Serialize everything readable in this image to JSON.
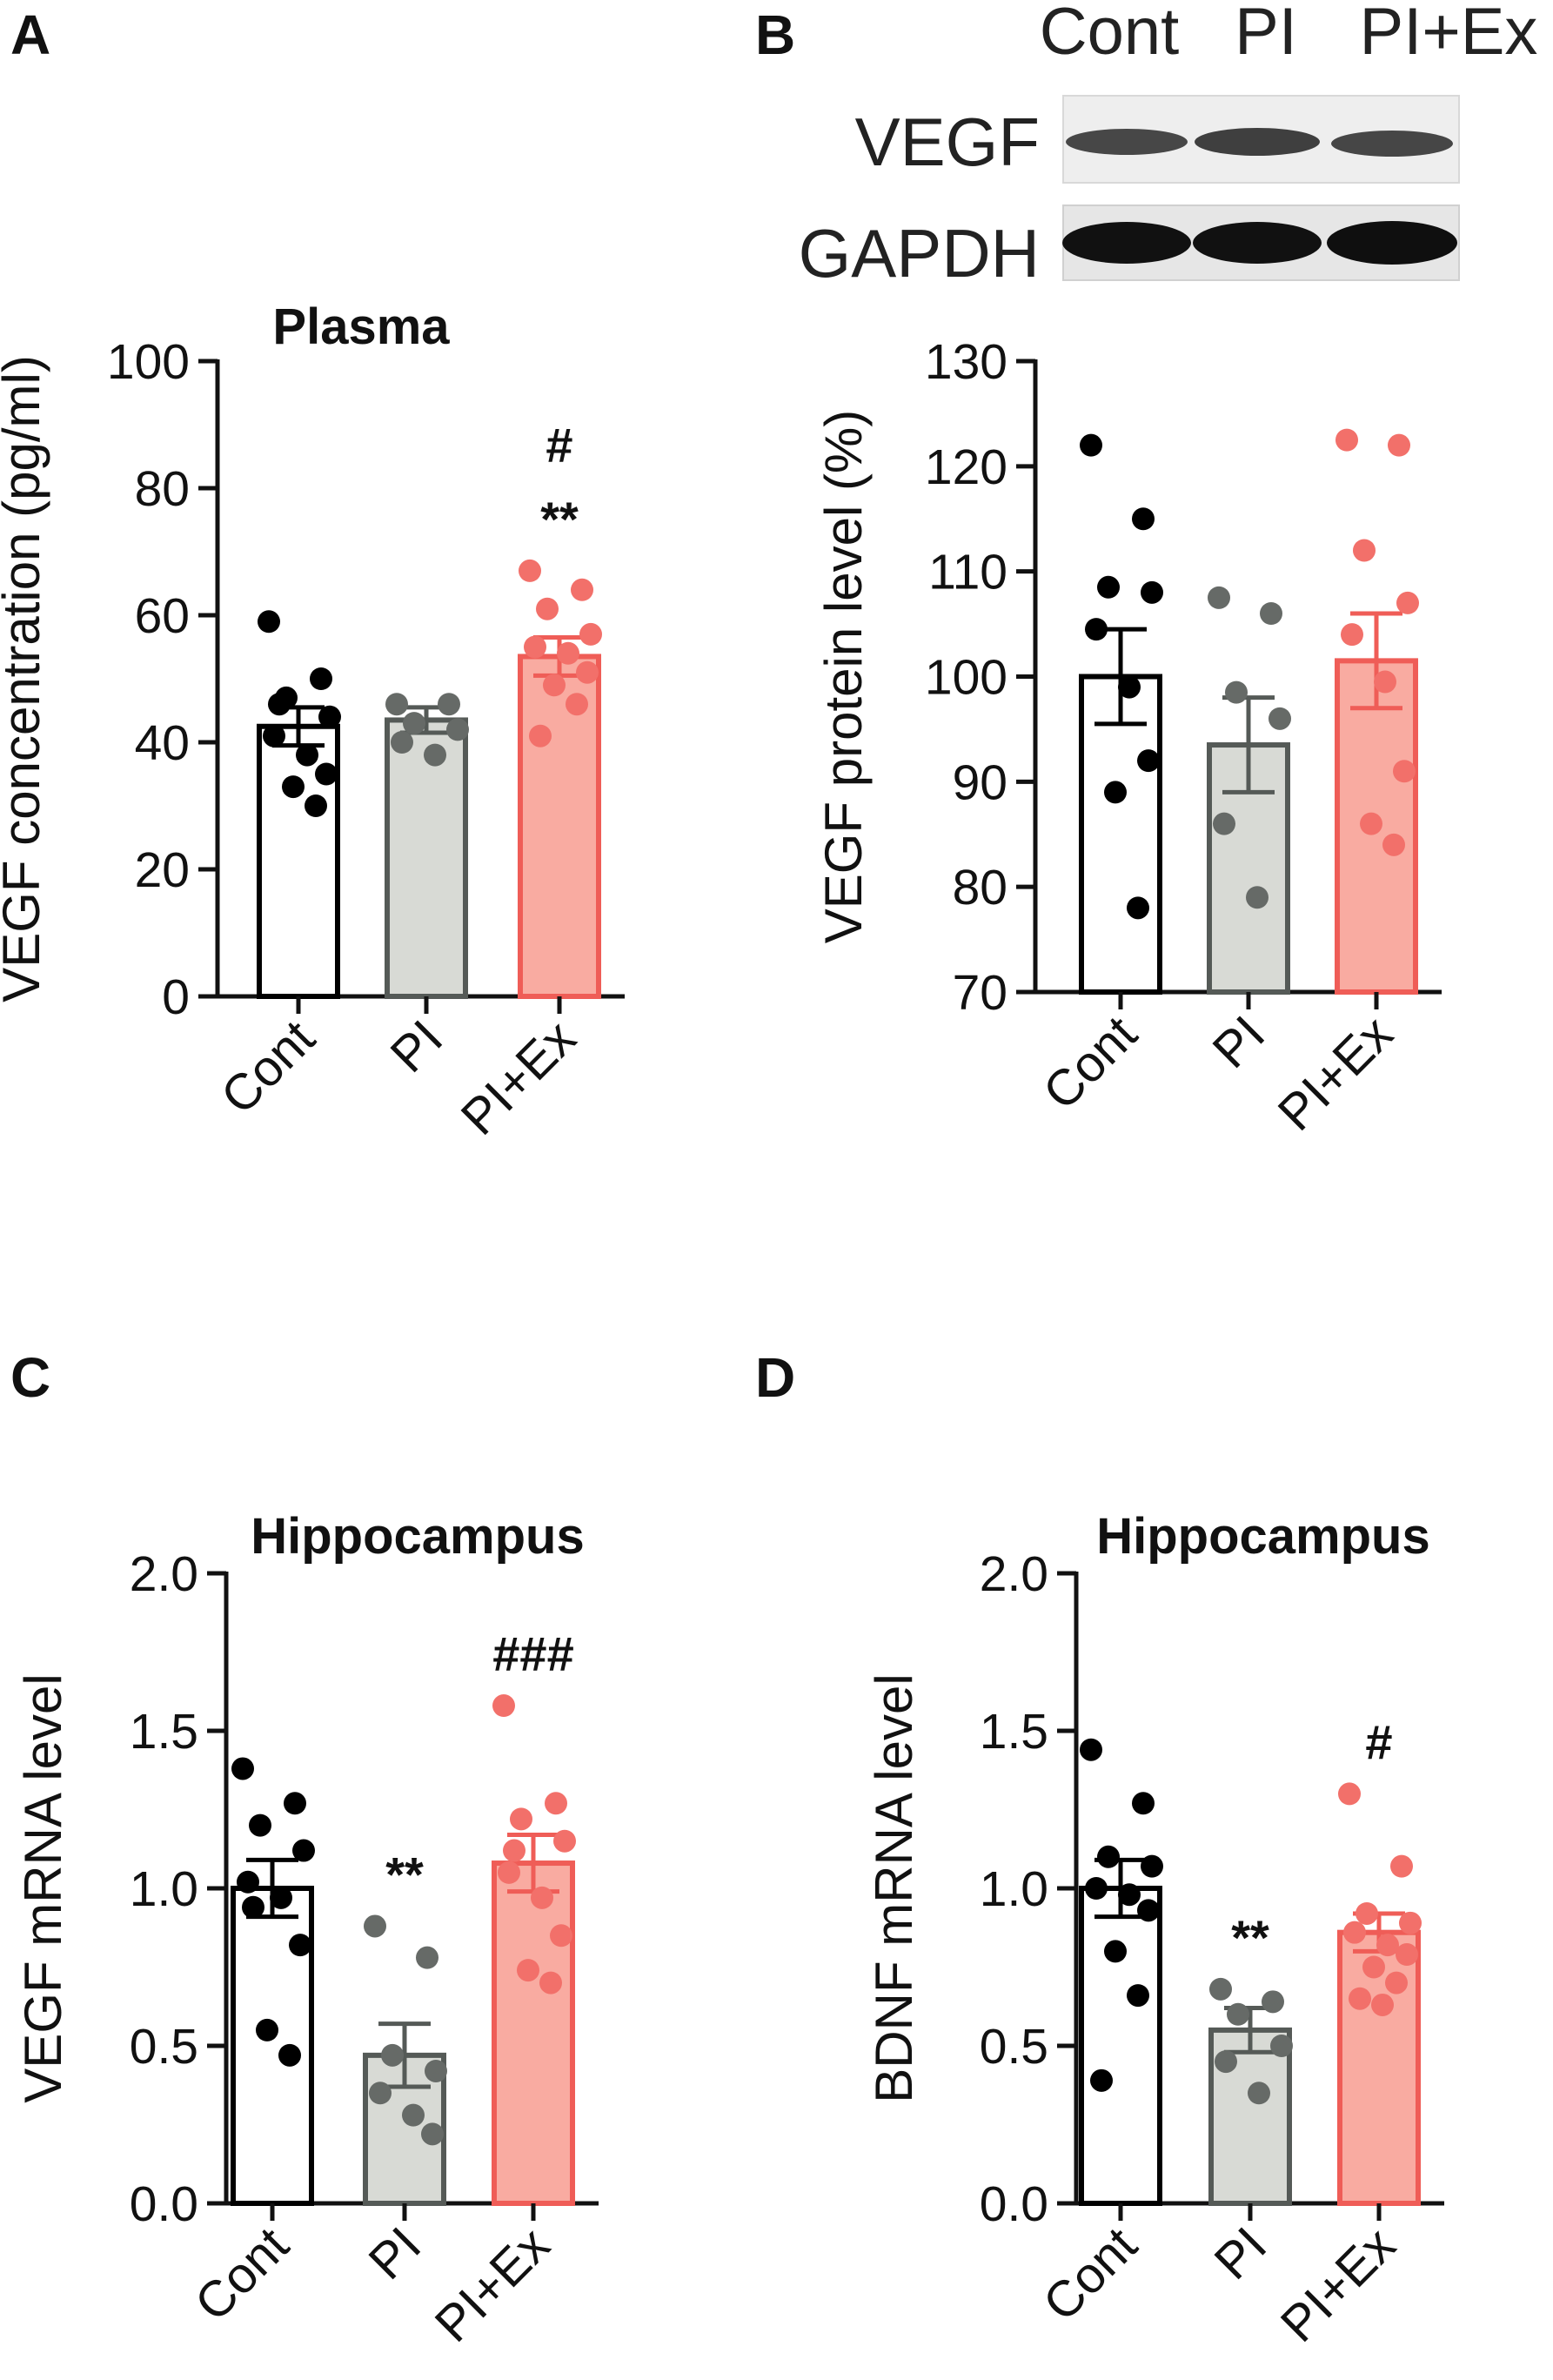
{
  "colors": {
    "Cont": {
      "fill": "#ffffff",
      "edge": "#000000",
      "dot": "#000000"
    },
    "PI": {
      "fill": "#d8dad5",
      "edge": "#555a57",
      "dot": "#666a67"
    },
    "PI+Ex": {
      "fill": "#f9aba1",
      "edge": "#ef5d57",
      "dot": "#f2706a"
    }
  },
  "blot": {
    "header": [
      "Cont",
      "PI",
      "PI+Ex"
    ],
    "rows": [
      "VEGF",
      "GAPDH"
    ]
  },
  "chart_data": [
    {
      "panel": "A",
      "type": "bar",
      "title": "Plasma",
      "ylabel": "VEGF concentration (pg/ml)",
      "xlabel": "",
      "ylim": [
        0,
        100
      ],
      "yticks": [
        0,
        20,
        40,
        60,
        80,
        100
      ],
      "tick_labels": [
        "0",
        "20",
        "40",
        "60",
        "80",
        "100"
      ],
      "categories": [
        "Cont",
        "PI",
        "PI+Ex"
      ],
      "values": [
        42.5,
        43.5,
        53.5
      ],
      "sem": [
        3.0,
        2.0,
        3.0
      ],
      "points": [
        [
          59,
          50,
          47,
          44,
          41,
          38,
          35,
          33,
          30,
          46
        ],
        [
          46,
          46,
          43,
          42,
          40,
          38
        ],
        [
          67,
          64,
          61,
          57,
          55,
          54,
          51,
          49,
          46,
          41
        ]
      ],
      "annotations": [
        {
          "category": "PI+Ex",
          "text": "#"
        },
        {
          "category": "PI+Ex",
          "text": "**"
        }
      ]
    },
    {
      "panel": "B",
      "type": "bar",
      "title": "",
      "ylabel": "VEGF protein level (%)",
      "xlabel": "",
      "ylim": [
        70,
        130
      ],
      "yticks": [
        70,
        80,
        90,
        100,
        110,
        120,
        130
      ],
      "tick_labels": [
        "70",
        "80",
        "90",
        "100",
        "110",
        "120",
        "130"
      ],
      "categories": [
        "Cont",
        "PI",
        "PI+Ex"
      ],
      "values": [
        100,
        93.5,
        101.5
      ],
      "sem": [
        4.5,
        4.5,
        4.5
      ],
      "points": [
        [
          122,
          115,
          108.5,
          108,
          104.5,
          99,
          92,
          89,
          78
        ],
        [
          107.5,
          106,
          98.5,
          96,
          86,
          79
        ],
        [
          122.5,
          122,
          112,
          107,
          104,
          99.5,
          91,
          86,
          84
        ]
      ],
      "annotations": []
    },
    {
      "panel": "C",
      "type": "bar",
      "title": "Hippocampus",
      "ylabel": "VEGF mRNA level",
      "xlabel": "",
      "ylim": [
        0,
        2
      ],
      "yticks": [
        0,
        0.5,
        1,
        1.5,
        2
      ],
      "tick_labels": [
        "0.0",
        "0.5",
        "1.0",
        "1.5",
        "2.0"
      ],
      "categories": [
        "Cont",
        "PI",
        "PI+Ex"
      ],
      "values": [
        1.0,
        0.47,
        1.08
      ],
      "sem": [
        0.09,
        0.1,
        0.09
      ],
      "points": [
        [
          1.38,
          1.27,
          1.2,
          1.12,
          1.02,
          0.97,
          0.82,
          0.55,
          0.47,
          0.94
        ],
        [
          0.88,
          0.78,
          0.47,
          0.42,
          0.35,
          0.28,
          0.22
        ],
        [
          1.58,
          1.27,
          1.22,
          1.15,
          1.05,
          0.97,
          0.85,
          0.74,
          0.7,
          1.12
        ]
      ],
      "annotations": [
        {
          "category": "PI",
          "text": "**"
        },
        {
          "category": "PI+Ex",
          "text": "###"
        }
      ]
    },
    {
      "panel": "D",
      "type": "bar",
      "title": "Hippocampus",
      "ylabel": "BDNF mRNA level",
      "xlabel": "",
      "ylim": [
        0,
        2
      ],
      "yticks": [
        0,
        0.5,
        1,
        1.5,
        2
      ],
      "tick_labels": [
        "0.0",
        "0.5",
        "1.0",
        "1.5",
        "2.0"
      ],
      "categories": [
        "Cont",
        "PI",
        "PI+Ex"
      ],
      "values": [
        1.0,
        0.55,
        0.86
      ],
      "sem": [
        0.09,
        0.07,
        0.06
      ],
      "points": [
        [
          1.44,
          1.27,
          1.1,
          1.07,
          1.0,
          0.98,
          0.93,
          0.8,
          0.66,
          0.39
        ],
        [
          0.68,
          0.64,
          0.6,
          0.5,
          0.45,
          0.35
        ],
        [
          1.3,
          1.07,
          0.92,
          0.89,
          0.86,
          0.82,
          0.79,
          0.75,
          0.7,
          0.65,
          0.63
        ]
      ],
      "annotations": [
        {
          "category": "PI",
          "text": "**"
        },
        {
          "category": "PI+Ex",
          "text": "#"
        }
      ]
    }
  ]
}
